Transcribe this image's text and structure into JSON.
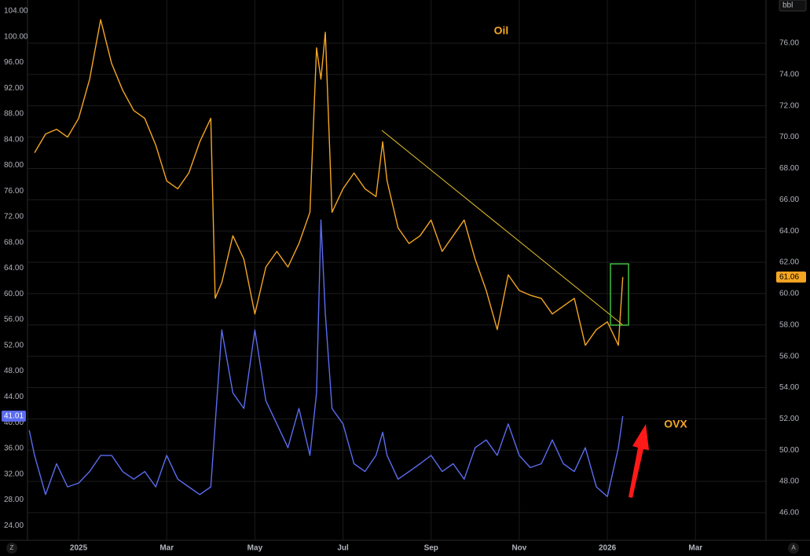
{
  "chart_data": {
    "type": "line",
    "annotations": {
      "oil": "Oil",
      "ovx": "OVX"
    },
    "unit": "bbl",
    "corner_buttons": [
      "Z",
      "A"
    ],
    "xlim": [
      -1.16,
      15.6
    ],
    "xticks": [
      {
        "value": 0,
        "label": "2025"
      },
      {
        "value": 2,
        "label": "Mar"
      },
      {
        "value": 4,
        "label": "May"
      },
      {
        "value": 6,
        "label": "Jul"
      },
      {
        "value": 8,
        "label": "Sep"
      },
      {
        "value": 10,
        "label": "Nov"
      },
      {
        "value": 12,
        "label": "2026"
      },
      {
        "value": 14,
        "label": "Mar"
      }
    ],
    "ylim": [
      21.7,
      105.7
    ],
    "yticks": [
      {
        "value": 24,
        "label": "24.00"
      },
      {
        "value": 28,
        "label": "28.00"
      },
      {
        "value": 32,
        "label": "32.00"
      },
      {
        "value": 36,
        "label": "36.00"
      },
      {
        "value": 40,
        "label": "40.00"
      },
      {
        "value": 44,
        "label": "44.00"
      },
      {
        "value": 48,
        "label": "48.00"
      },
      {
        "value": 52,
        "label": "52.00"
      },
      {
        "value": 56,
        "label": "56.00"
      },
      {
        "value": 60,
        "label": "60.00"
      },
      {
        "value": 64,
        "label": "64.00"
      },
      {
        "value": 68,
        "label": "68.00"
      },
      {
        "value": 72,
        "label": "72.00"
      },
      {
        "value": 76,
        "label": "76.00"
      },
      {
        "value": 80,
        "label": "80.00"
      },
      {
        "value": 84,
        "label": "84.00"
      },
      {
        "value": 88,
        "label": "88.00"
      },
      {
        "value": 92,
        "label": "92.00"
      },
      {
        "value": 96,
        "label": "96.00"
      },
      {
        "value": 100,
        "label": "100.00"
      },
      {
        "value": 104,
        "label": "104.00"
      }
    ],
    "y2lim": [
      44.24,
      78.76
    ],
    "y2ticks": [
      {
        "value": 46,
        "label": "46.00"
      },
      {
        "value": 48,
        "label": "48.00"
      },
      {
        "value": 50,
        "label": "50.00"
      },
      {
        "value": 52,
        "label": "52.00"
      },
      {
        "value": 54,
        "label": "54.00"
      },
      {
        "value": 56,
        "label": "56.00"
      },
      {
        "value": 58,
        "label": "58.00"
      },
      {
        "value": 60,
        "label": "60.00"
      },
      {
        "value": 62,
        "label": "62.00"
      },
      {
        "value": 64,
        "label": "64.00"
      },
      {
        "value": 66,
        "label": "66.00"
      },
      {
        "value": 68,
        "label": "68.00"
      },
      {
        "value": 70,
        "label": "70.00"
      },
      {
        "value": 72,
        "label": "72.00"
      },
      {
        "value": 74,
        "label": "74.00"
      },
      {
        "value": 76,
        "label": "76.00"
      }
    ],
    "grid": true,
    "series": [
      {
        "name": "Oil",
        "color": "#f5a623",
        "axis": "y2",
        "last_value": 61.06,
        "last_value_label": "61.06",
        "x": [
          -1.0,
          -0.75,
          -0.5,
          -0.25,
          0,
          0.25,
          0.5,
          0.75,
          1.0,
          1.25,
          1.5,
          1.75,
          2.0,
          2.25,
          2.5,
          2.75,
          3.0,
          3.1,
          3.25,
          3.5,
          3.75,
          4.0,
          4.25,
          4.5,
          4.75,
          5.0,
          5.25,
          5.4,
          5.5,
          5.6,
          5.75,
          6.0,
          6.25,
          6.5,
          6.75,
          6.9,
          7.0,
          7.25,
          7.5,
          7.75,
          8.0,
          8.25,
          8.5,
          8.75,
          9.0,
          9.25,
          9.5,
          9.75,
          10.0,
          10.25,
          10.5,
          10.75,
          11.0,
          11.25,
          11.5,
          11.75,
          12.0,
          12.25,
          12.35
        ],
        "values": [
          69.0,
          70.2,
          70.5,
          70.0,
          71.2,
          73.7,
          77.5,
          74.7,
          73.0,
          71.7,
          71.2,
          69.5,
          67.2,
          66.7,
          67.7,
          69.7,
          71.2,
          59.7,
          60.7,
          63.7,
          62.2,
          58.7,
          61.7,
          62.7,
          61.7,
          63.2,
          65.2,
          75.7,
          73.7,
          76.7,
          65.2,
          66.7,
          67.7,
          66.7,
          66.2,
          69.7,
          67.2,
          64.2,
          63.2,
          63.7,
          64.7,
          62.7,
          63.7,
          64.7,
          62.2,
          60.2,
          57.7,
          61.2,
          60.2,
          59.9,
          59.7,
          58.7,
          59.2,
          59.7,
          56.7,
          57.7,
          58.2,
          56.7,
          61.06
        ]
      },
      {
        "name": "OVX",
        "color": "#5b6cf0",
        "axis": "y",
        "last_value": 41.01,
        "last_value_label": "41.01",
        "x": [
          -1.12,
          -1.0,
          -0.75,
          -0.5,
          -0.25,
          0,
          0.25,
          0.5,
          0.75,
          1.0,
          1.25,
          1.5,
          1.75,
          2.0,
          2.25,
          2.5,
          2.75,
          3.0,
          3.1,
          3.25,
          3.5,
          3.75,
          4.0,
          4.25,
          4.5,
          4.75,
          5.0,
          5.25,
          5.4,
          5.5,
          5.6,
          5.75,
          6.0,
          6.25,
          6.5,
          6.75,
          6.9,
          7.0,
          7.25,
          7.5,
          7.75,
          8.0,
          8.25,
          8.5,
          8.75,
          9.0,
          9.25,
          9.5,
          9.75,
          10.0,
          10.25,
          10.5,
          10.75,
          11.0,
          11.25,
          11.5,
          11.75,
          12.0,
          12.25,
          12.35
        ],
        "values": [
          38.8,
          34.9,
          28.8,
          33.6,
          30.0,
          30.6,
          32.4,
          34.9,
          34.9,
          32.4,
          31.2,
          32.4,
          30.0,
          34.9,
          31.2,
          30.0,
          28.8,
          30.0,
          39.8,
          54.4,
          44.6,
          42.2,
          54.4,
          43.4,
          39.8,
          36.1,
          42.2,
          34.9,
          44.6,
          71.5,
          56.9,
          42.2,
          39.8,
          33.6,
          32.4,
          34.9,
          38.5,
          34.9,
          31.2,
          32.4,
          33.6,
          34.9,
          32.4,
          33.6,
          31.2,
          36.1,
          37.3,
          34.9,
          39.8,
          34.9,
          33.0,
          33.6,
          37.3,
          33.6,
          32.4,
          36.1,
          30.0,
          28.5,
          36.1,
          41.01
        ]
      }
    ]
  }
}
